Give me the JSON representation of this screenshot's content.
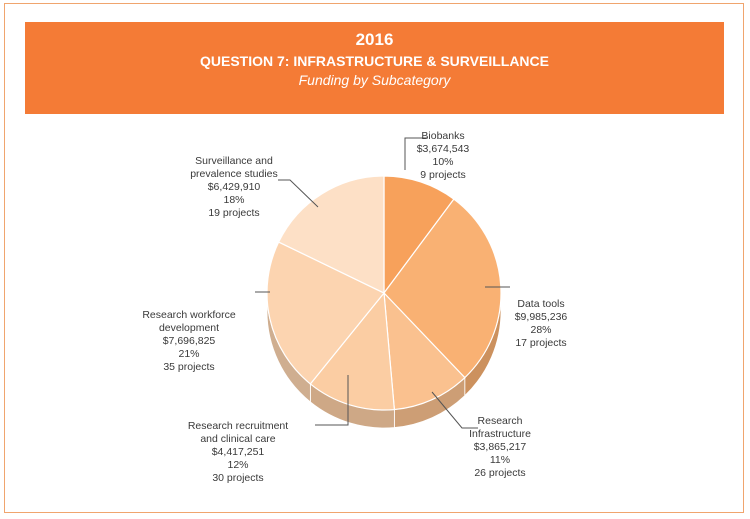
{
  "banner": {
    "year": "2016",
    "question": "QUESTION 7: INFRASTRUCTURE & SURVEILLANCE",
    "subtitle": "Funding by Subcategory"
  },
  "colors": {
    "banner": "#f47b36",
    "frame": "#f0a56e",
    "leader": "#555555"
  },
  "chart_data": {
    "type": "pie",
    "title": "2016 Question 7: Infrastructure & Surveillance — Funding by Subcategory",
    "slices": [
      {
        "name": "Biobanks",
        "amount": "$3,674,543",
        "percent_label": "10%",
        "projects": "9 projects",
        "value": 3674543,
        "color": "#f7a15b"
      },
      {
        "name": "Data tools",
        "amount": "$9,985,236",
        "percent_label": "28%",
        "projects": "17 projects",
        "value": 9985236,
        "color": "#f9b173"
      },
      {
        "name": "Research Infrastructure",
        "label_lines": [
          "Research",
          "Infrastructure"
        ],
        "amount": "$3,865,217",
        "percent_label": "11%",
        "projects": "26 projects",
        "value": 3865217,
        "color": "#fac18f"
      },
      {
        "name": "Research recruitment and clinical care",
        "label_lines": [
          "Research recruitment",
          "and clinical care"
        ],
        "amount": "$4,417,251",
        "percent_label": "12%",
        "projects": "30 projects",
        "value": 4417251,
        "color": "#fbcda3"
      },
      {
        "name": "Research workforce development",
        "label_lines": [
          "Research workforce",
          "development"
        ],
        "amount": "$7,696,825",
        "percent_label": "21%",
        "projects": "35 projects",
        "value": 7696825,
        "color": "#fcd4b0"
      },
      {
        "name": "Surveillance and prevalence studies",
        "label_lines": [
          "Surveillance and",
          "prevalence studies"
        ],
        "amount": "$6,429,910",
        "percent_label": "18%",
        "projects": "19 projects",
        "value": 6429910,
        "color": "#fde0c6"
      }
    ]
  }
}
